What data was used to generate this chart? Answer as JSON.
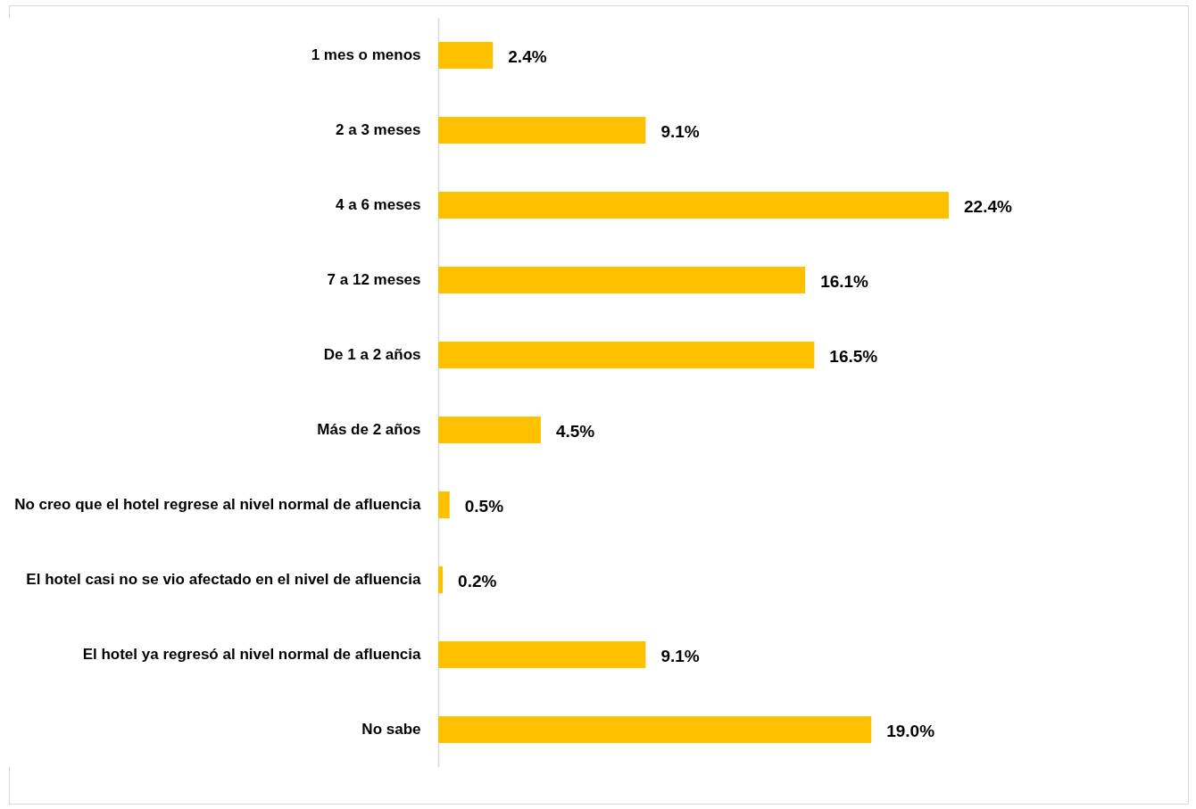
{
  "chart_data": {
    "type": "bar",
    "orientation": "horizontal",
    "categories": [
      "1 mes o menos",
      "2 a 3 meses",
      "4 a 6 meses",
      "7 a 12 meses",
      "De 1 a 2 años",
      "Más de 2 años",
      "No creo que el hotel regrese al nivel normal de afluencia",
      "El hotel casi no se vio afectado en el nivel de afluencia",
      "El hotel ya regresó al nivel normal de afluencia",
      "No sabe"
    ],
    "values": [
      2.4,
      9.1,
      22.4,
      16.1,
      16.5,
      4.5,
      0.5,
      0.2,
      9.1,
      19.0
    ],
    "value_labels": [
      "2.4%",
      "9.1%",
      "22.4%",
      "16.1%",
      "16.5%",
      "4.5%",
      "0.5%",
      "0.2%",
      "9.1%",
      "19.0%"
    ],
    "color": "#ffc000"
  }
}
